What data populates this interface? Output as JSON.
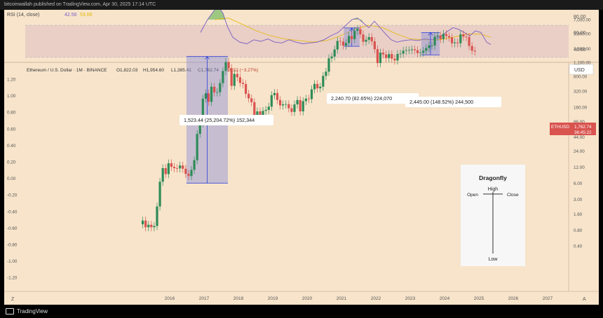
{
  "header": {
    "published": "bitcoinwallah published on TradingView.com, Apr 30, 2025 17:14 UTC"
  },
  "footer": {
    "brand": "TradingView"
  },
  "rsi": {
    "title": "RSI (14, close)",
    "value1": "42.56",
    "value2": "53.66",
    "levels": [
      "80.00",
      "60.00",
      "40.00"
    ]
  },
  "main": {
    "symbol_line": "Ethereum / U.S. Dollar · 1M · BINANCE",
    "ohlc": {
      "o": "O1,822.03",
      "h": "H1,954.60",
      "l": "L1,385.41",
      "c": "C1,762.74",
      "chg": "−59.52 (−3.27%)"
    },
    "currency": "USD",
    "price_tag": {
      "symbol": "ETHUSD",
      "price": "1,762.74",
      "timer": "36:45:22"
    },
    "left_axis": [
      "1.20",
      "1.00",
      "0.80",
      "0.60",
      "0.40",
      "0.20",
      "0.00",
      "-0.20",
      "-0.40",
      "-0.60",
      "-0.80",
      "-1.00",
      "-1.20"
    ],
    "right_axis": [
      "13,000.00",
      "7,000.00",
      "3,800.00",
      "2,000.00",
      "1,100.00",
      "600.00",
      "320.00",
      "160.00",
      "86.00",
      "44.00",
      "24.00",
      "12.00",
      "6.00",
      "3.00",
      "1.60",
      "0.80",
      "0.40"
    ],
    "x_axis": [
      "2016",
      "2017",
      "2018",
      "2019",
      "2020",
      "2021",
      "2022",
      "2023",
      "2024",
      "2025",
      "2026",
      "2027"
    ],
    "corner_left": "Z",
    "corner_right": "A"
  },
  "annotations": [
    {
      "label": "1,523.44 (25,204.72%) 152,344"
    },
    {
      "label": "2,240.70 (82.65%) 224,070"
    },
    {
      "label": "2,445.00 (148.52%) 244,500"
    }
  ],
  "dragonfly": {
    "title": "Dragonfly",
    "high": "High",
    "open": "Open",
    "close": "Close",
    "low": "Low"
  },
  "colors": {
    "up": "#2e8b57",
    "down": "#d9534f",
    "bg": "#f7e4cb",
    "rsi": "#7b5cc4",
    "rsi_ma": "#e6b800",
    "box": "#8a8fd8"
  },
  "chart_data": {
    "type": "candlestick",
    "title": "Ethereum / U.S. Dollar · 1M · BINANCE",
    "y_scale": "log",
    "x": [
      "2015-08",
      "2015-09",
      "2015-10",
      "2015-11",
      "2015-12",
      "2016-01",
      "2016-02",
      "2016-03",
      "2016-04",
      "2016-05",
      "2016-06",
      "2016-07",
      "2016-08",
      "2016-09",
      "2016-10",
      "2016-11",
      "2016-12",
      "2017-01",
      "2017-02",
      "2017-03",
      "2017-04",
      "2017-05",
      "2017-06",
      "2017-07",
      "2017-08",
      "2017-09",
      "2017-10",
      "2017-11",
      "2017-12",
      "2018-01",
      "2018-02",
      "2018-03",
      "2018-04",
      "2018-05",
      "2018-06",
      "2018-07",
      "2018-08",
      "2018-09",
      "2018-10",
      "2018-11",
      "2018-12",
      "2019-01",
      "2019-02",
      "2019-03",
      "2019-04",
      "2019-05",
      "2019-06",
      "2019-07",
      "2019-08",
      "2019-09",
      "2019-10",
      "2019-11",
      "2019-12",
      "2020-01",
      "2020-02",
      "2020-03",
      "2020-04",
      "2020-05",
      "2020-06",
      "2020-07",
      "2020-08",
      "2020-09",
      "2020-10",
      "2020-11",
      "2020-12",
      "2021-01",
      "2021-02",
      "2021-03",
      "2021-04",
      "2021-05",
      "2021-06",
      "2021-07",
      "2021-08",
      "2021-09",
      "2021-10",
      "2021-11",
      "2021-12",
      "2022-01",
      "2022-02",
      "2022-03",
      "2022-04",
      "2022-05",
      "2022-06",
      "2022-07",
      "2022-08",
      "2022-09",
      "2022-10",
      "2022-11",
      "2022-12",
      "2023-01",
      "2023-02",
      "2023-03",
      "2023-04",
      "2023-05",
      "2023-06",
      "2023-07",
      "2023-08",
      "2023-09",
      "2023-10",
      "2023-11",
      "2023-12",
      "2024-01",
      "2024-02",
      "2024-03",
      "2024-04",
      "2024-05",
      "2024-06",
      "2024-07",
      "2024-08",
      "2024-09",
      "2024-10",
      "2024-11",
      "2024-12",
      "2025-01",
      "2025-02",
      "2025-03",
      "2025-04"
    ],
    "close": [
      1.2,
      0.9,
      1.0,
      0.9,
      0.95,
      2.2,
      6.4,
      11.5,
      8.9,
      14.2,
      12.2,
      11.5,
      11.4,
      12.9,
      11.2,
      9.0,
      8.2,
      10.7,
      16.2,
      50.5,
      80.0,
      230,
      290,
      201,
      385,
      302,
      305,
      450,
      760,
      1120,
      860,
      400,
      670,
      580,
      455,
      433,
      284,
      233,
      198,
      114,
      133,
      107,
      136,
      142,
      163,
      268,
      294,
      218,
      172,
      180,
      182,
      152,
      130,
      180,
      217,
      133,
      207,
      231,
      226,
      345,
      435,
      360,
      386,
      615,
      737,
      1312,
      1419,
      1918,
      2772,
      2706,
      2275,
      2535,
      3433,
      3000,
      4288,
      4630,
      3682,
      2686,
      2921,
      3281,
      2730,
      1941,
      1070,
      1679,
      1553,
      1328,
      1572,
      1295,
      1197,
      1585,
      1605,
      1821,
      1869,
      1874,
      1934,
      1857,
      1645,
      1671,
      1815,
      2052,
      2282,
      2283,
      3340,
      3507,
      3013,
      3763,
      3433,
      3232,
      2514,
      2602,
      2518,
      3703,
      3332,
      3300,
      2237,
      1822,
      1762
    ],
    "annotations": [
      {
        "from": "2016-12",
        "to": "2018-01",
        "change": "1,523.44",
        "percent": "25,204.72%",
        "ticks": "152,344"
      },
      {
        "from": "2021-07",
        "to": "2021-11",
        "change": "2,240.70",
        "percent": "82.65%",
        "ticks": "224,070"
      },
      {
        "from": "2023-10",
        "to": "2024-03",
        "change": "2,445.00",
        "percent": "148.52%",
        "ticks": "244,500"
      }
    ],
    "rsi": {
      "length": 14,
      "last": 42.56,
      "ma_last": 53.66,
      "levels": [
        80,
        60,
        40
      ]
    }
  }
}
